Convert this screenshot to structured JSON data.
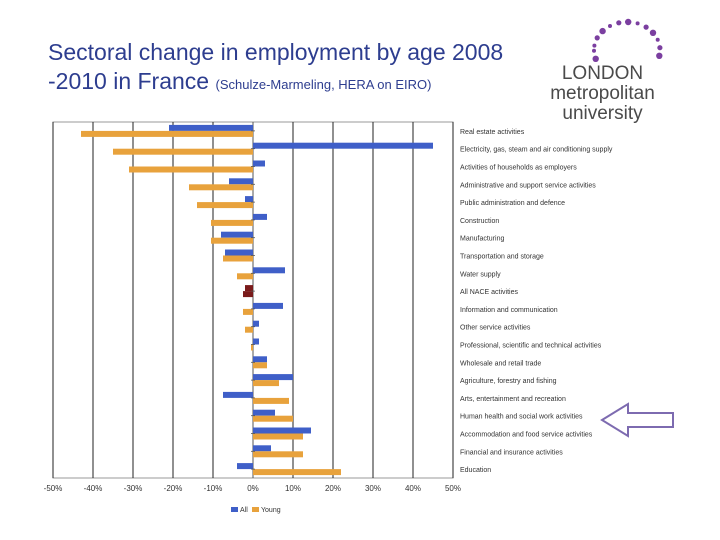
{
  "slide": {
    "title_main": "Sectoral change in employment by age 2008 -2010 in France",
    "title_sub": "(Schulze-Marmeling, HERA on EIRO)",
    "logo": {
      "line1": "LONDON",
      "line2": "metropolitan",
      "line3": "university"
    },
    "colors": {
      "title": "#2d3d8f",
      "all": "#3f5fc8",
      "young": "#e8a23c",
      "total": "#7a1a1a",
      "logo_dots": "#7b3fa0",
      "arrow": "#7d6bb0"
    }
  },
  "chart_data": {
    "type": "bar",
    "orientation": "horizontal",
    "categories": [
      "Real estate activities",
      "Electricity, gas, steam and air conditioning supply",
      "Activities of households as employers",
      "Administrative and support service activities",
      "Public administration and defence",
      "Construction",
      "Manufacturing",
      "Transportation and storage",
      "Water supply",
      "All NACE activities",
      "Information and communication",
      "Other service activities",
      "Professional, scientific and technical activities",
      "Wholesale and retail trade",
      "Agriculture, forestry and fishing",
      "Arts, entertainment and recreation",
      "Human health and social work activities",
      "Accommodation and food service activities",
      "Financial and insurance activities",
      "Education"
    ],
    "series": [
      {
        "name": "All",
        "values": [
          -21,
          45,
          3,
          -6,
          -2,
          3.5,
          -8,
          -7,
          8,
          -2,
          7.5,
          1.5,
          1.5,
          3.5,
          10,
          -7.5,
          5.5,
          14.5,
          4.5,
          -4
        ]
      },
      {
        "name": "Young",
        "values": [
          -43,
          -35,
          -31,
          -16,
          -14,
          -10.5,
          -10.5,
          -7.5,
          -4,
          -2.5,
          -2.5,
          -2,
          -0.5,
          3.5,
          6.5,
          9,
          10,
          12.5,
          12.5,
          22
        ]
      }
    ],
    "highlight_category": "All NACE activities",
    "xlim": [
      -50,
      50
    ],
    "xticks": [
      -50,
      -40,
      -30,
      -20,
      -10,
      0,
      10,
      20,
      30,
      40,
      50
    ],
    "xtick_labels": [
      "-50%",
      "-40%",
      "-30%",
      "-20%",
      "-10%",
      "0%",
      "10%",
      "20%",
      "30%",
      "40%",
      "50%"
    ],
    "legend": {
      "position": "bottom",
      "entries": [
        "All",
        "Young"
      ]
    },
    "grid": true
  }
}
